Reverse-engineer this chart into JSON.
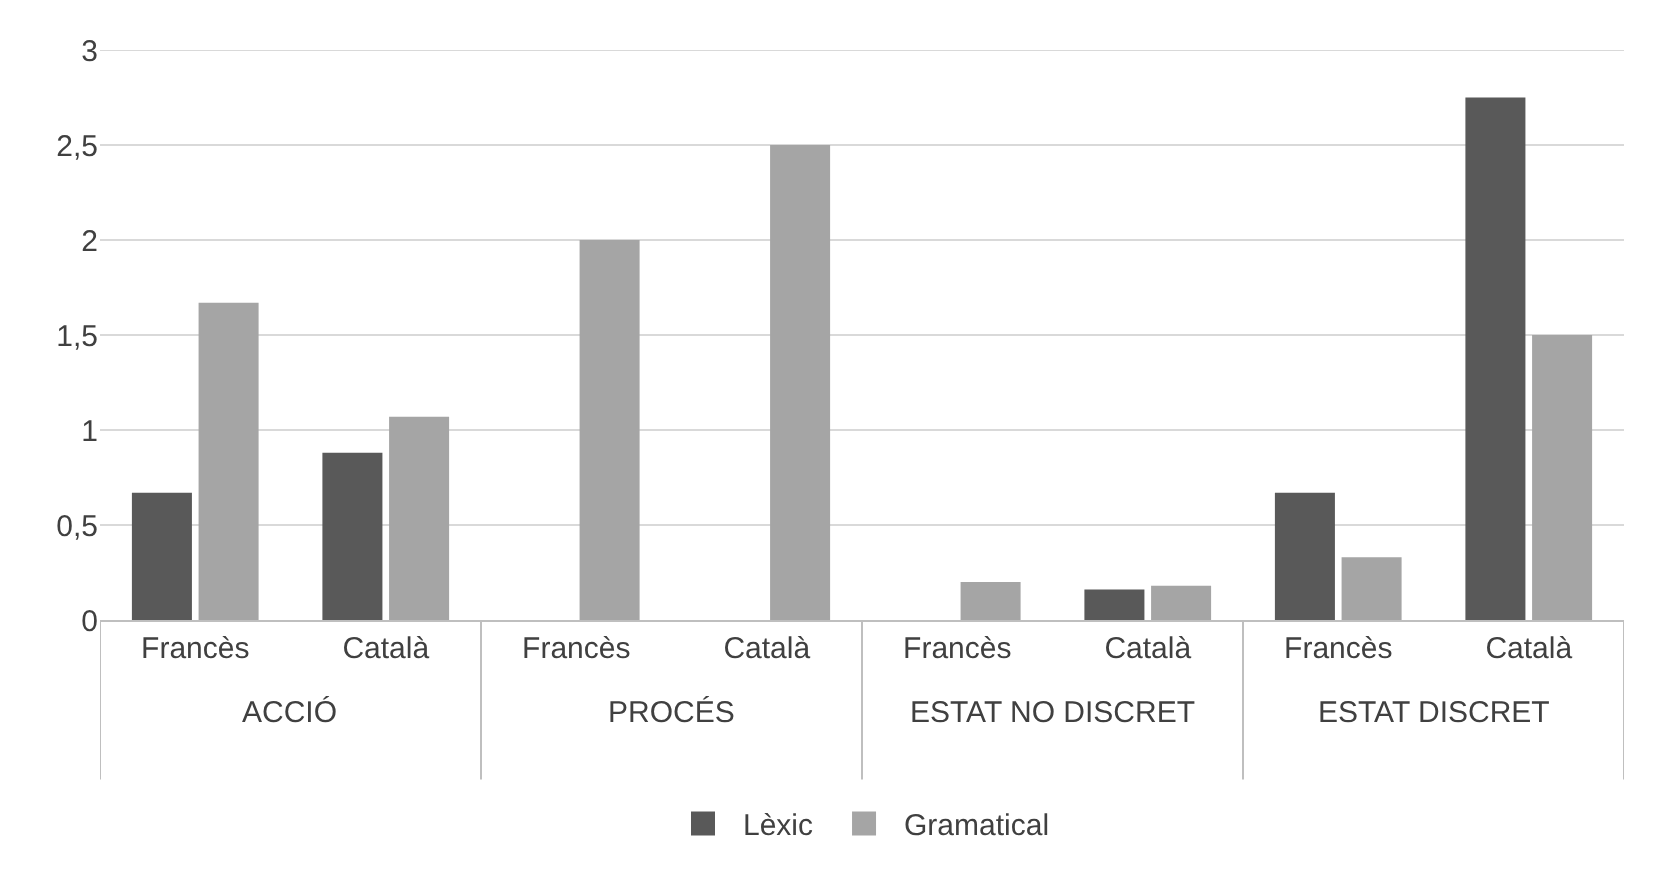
{
  "chart_data": {
    "type": "bar",
    "categories": [
      "Francès",
      "Català",
      "Francès",
      "Català",
      "Francès",
      "Català",
      "Francès",
      "Català"
    ],
    "annotations": [
      "ACCIÓ",
      "PROCÉS",
      "ESTAT NO DISCRET",
      "ESTAT DISCRET"
    ],
    "series": [
      {
        "name": "Lèxic",
        "color": "#595959",
        "values": [
          0.67,
          0.88,
          null,
          null,
          null,
          0.16,
          0.67,
          2.75
        ]
      },
      {
        "name": "Gramatical",
        "color": "#a5a5a5",
        "values": [
          1.67,
          1.07,
          2.0,
          2.5,
          0.2,
          0.18,
          0.33,
          1.5
        ]
      }
    ],
    "ylim": [
      0,
      3
    ],
    "yticks": [
      0,
      {
        "value": 0.5,
        "label": "0,5"
      },
      1,
      {
        "value": 1.5,
        "label": "1,5"
      },
      2,
      {
        "value": 2.5,
        "label": "2,5"
      },
      3
    ],
    "grid": "y",
    "legend": "bottom"
  }
}
